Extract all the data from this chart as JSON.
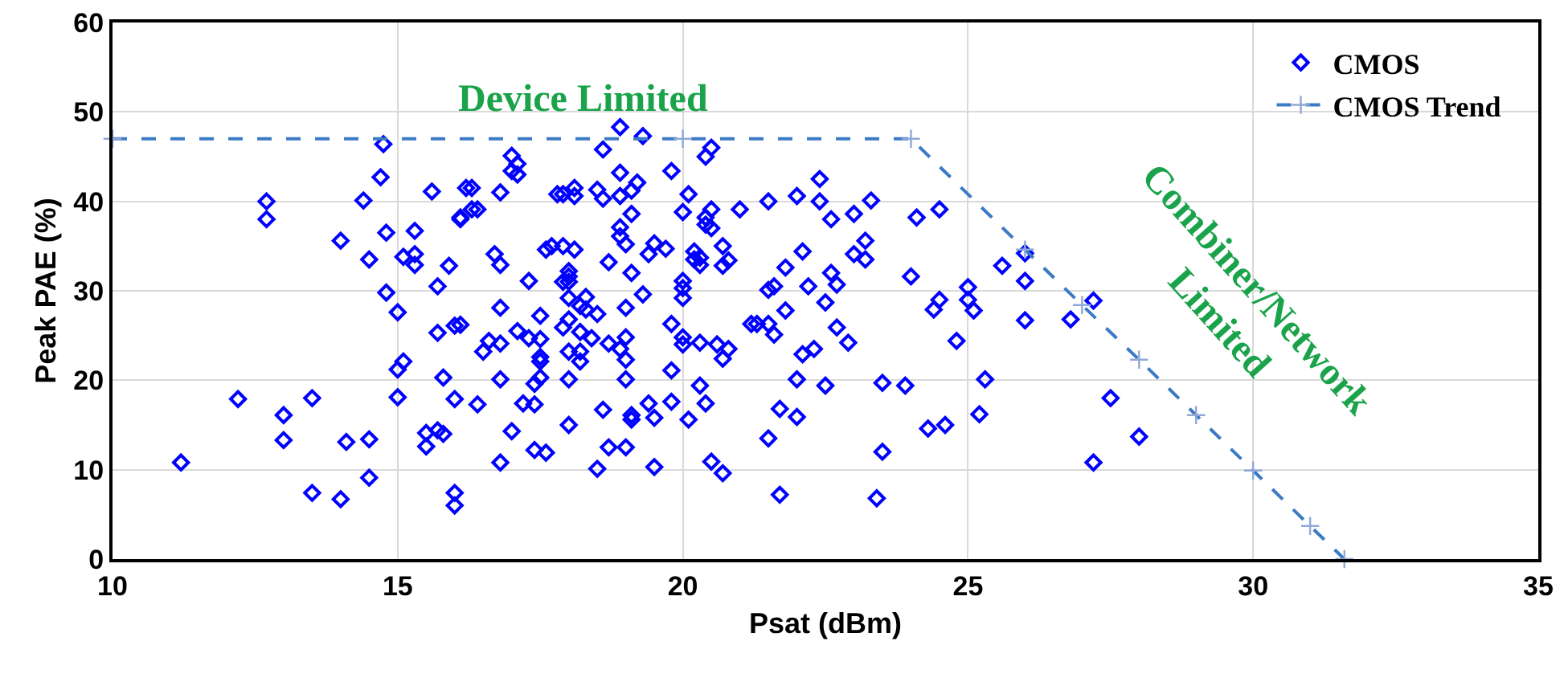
{
  "chart_data": {
    "type": "scatter",
    "xlabel": "Psat (dBm)",
    "ylabel": "Peak PAE (%)",
    "xlim": [
      10,
      35
    ],
    "ylim": [
      0,
      60
    ],
    "xticks": [
      10,
      15,
      20,
      25,
      30,
      35
    ],
    "yticks": [
      0,
      10,
      20,
      30,
      40,
      50,
      60
    ],
    "grid": true,
    "legend": "top right",
    "annotations": [
      "Device Limited",
      "Combiner/Network\nLimited"
    ],
    "series": [
      {
        "name": "CMOS",
        "color": "#0000ff",
        "marker": "diamond",
        "x": [
          11.2,
          12.2,
          12.7,
          12.7,
          13,
          13,
          13.5,
          13.5,
          14,
          14,
          14.1,
          14.5,
          14.5,
          14.4,
          14.5,
          14.7,
          14.75,
          14.8,
          15,
          15,
          15,
          15.1,
          14.8,
          15.1,
          15.3,
          15.3,
          15.3,
          15.6,
          15.7,
          15.7,
          16,
          15.8,
          15.5,
          15.5,
          15.7,
          15.8,
          16,
          16,
          16,
          15.9,
          16.1,
          16.3,
          16.4,
          18.9,
          19.3,
          18.6,
          20.4,
          20.5,
          17,
          17.1,
          17,
          17.1,
          18.9,
          19.8,
          19.2,
          19.1,
          16.2,
          16.8,
          17.8,
          17.9,
          18.1,
          18.1,
          18.5,
          18.6,
          18.9,
          20.1,
          20,
          20.5,
          20.4,
          20.4,
          20.5,
          21,
          19.1,
          16.3,
          16.1,
          18.9,
          18.9,
          19,
          19.5,
          19.4,
          19.7,
          18.7,
          20.2,
          20.3,
          20.2,
          20.3,
          20.7,
          20.8,
          20.7,
          16.7,
          16.8,
          17.6,
          17.7,
          17.9,
          18.1,
          18,
          18,
          17.9,
          18,
          19.1,
          17.3,
          20,
          20,
          20,
          19.3,
          16.1,
          16.8,
          18,
          18.3,
          18.2,
          18.3,
          18.5,
          17.5,
          19,
          19.8,
          21.2,
          17.1,
          17.3,
          17.5,
          17.9,
          18,
          18.2,
          18.4,
          16.6,
          16.5,
          16.8,
          17.5,
          17.5,
          18,
          18.2,
          18.2,
          18.7,
          18.9,
          19,
          19,
          20,
          20,
          20.3,
          20.6,
          20.8,
          20.7,
          16.8,
          17.4,
          17.5,
          18,
          19,
          19.8,
          20.3,
          20.4,
          16.4,
          17.2,
          17.4,
          18.6,
          19.1,
          19.1,
          19.4,
          19.5,
          19.8,
          20.1,
          17,
          18,
          17.4,
          17.6,
          18.7,
          19,
          16.8,
          18.5,
          19.5,
          20.5,
          20.7,
          21.5,
          22,
          22.4,
          22.4,
          22.6,
          23,
          23.3,
          22.1,
          21.8,
          23.2,
          23,
          23.2,
          22.6,
          22.7,
          21.5,
          21.6,
          22.2,
          22.5,
          21.8,
          21.3,
          21.5,
          21.6,
          22.7,
          22.9,
          22.3,
          22.1,
          22,
          22.5,
          21.7,
          22,
          21.5,
          21.7,
          23.4,
          23.5,
          23.9,
          23.5,
          24,
          24.1,
          24.5,
          24.4,
          24.5,
          24.8,
          25,
          25,
          25.1,
          25.3,
          24.3,
          24.6,
          25.2,
          25.6,
          26,
          26,
          26,
          26.8,
          27.2,
          27.5,
          28,
          27.2
        ],
        "values": [
          10.8,
          17.9,
          40,
          38,
          16.1,
          13.3,
          18,
          7.4,
          35.6,
          6.7,
          13.1,
          13.4,
          9.1,
          40.1,
          33.5,
          42.7,
          46.4,
          36.5,
          27.6,
          18.1,
          21.2,
          22.1,
          29.8,
          33.8,
          34.1,
          32.9,
          36.7,
          41.1,
          30.5,
          25.3,
          26.1,
          20.3,
          14.1,
          12.6,
          14.4,
          14,
          17.9,
          7.4,
          6,
          32.8,
          38,
          41.5,
          39.1,
          48.3,
          47.3,
          45.8,
          45,
          46,
          45.1,
          44.2,
          43.4,
          43,
          43.2,
          43.4,
          42.1,
          41.2,
          41.5,
          41,
          40.8,
          40.8,
          41.5,
          40.6,
          41.3,
          40.3,
          40.6,
          40.8,
          38.8,
          39.1,
          38.2,
          37.4,
          37,
          39.1,
          38.6,
          39.1,
          38.2,
          37.1,
          36.1,
          35.2,
          35.3,
          34.1,
          34.7,
          33.2,
          34.4,
          33.7,
          33.5,
          32.9,
          35,
          33.4,
          32.8,
          34.1,
          32.9,
          34.6,
          35,
          35,
          34.6,
          32.2,
          31.6,
          31,
          31,
          32,
          31.1,
          31.1,
          30.3,
          29.2,
          29.6,
          26.2,
          28.1,
          29.2,
          29.3,
          28.3,
          27.9,
          27.4,
          27.2,
          28.1,
          26.3,
          26.3,
          25.5,
          24.7,
          24.6,
          25.9,
          26.8,
          25.4,
          24.7,
          24.4,
          23.2,
          24.1,
          22.6,
          22.1,
          23.2,
          23.2,
          22.1,
          24.1,
          23.5,
          24.8,
          22.3,
          24.8,
          24,
          24.2,
          24,
          23.5,
          22.4,
          20.1,
          19.6,
          20.3,
          20.1,
          20.1,
          21.1,
          19.4,
          17.4,
          17.3,
          17.4,
          17.3,
          16.7,
          16.1,
          15.6,
          17.4,
          15.8,
          17.6,
          15.6,
          14.3,
          15,
          12.2,
          11.9,
          12.5,
          12.5,
          10.8,
          10.1,
          10.3,
          10.9,
          9.6,
          40,
          40.6,
          42.5,
          40,
          38,
          38.6,
          40.1,
          34.4,
          32.6,
          35.6,
          34.1,
          33.5,
          32,
          30.7,
          30.1,
          30.5,
          30.5,
          28.7,
          27.8,
          26.3,
          26.3,
          25.1,
          25.9,
          24.2,
          23.5,
          22.9,
          20.1,
          19.4,
          16.8,
          15.9,
          13.5,
          7.2,
          6.8,
          19.7,
          19.4,
          12,
          31.6,
          38.2,
          39.1,
          27.9,
          29,
          24.4,
          30.4,
          29,
          27.8,
          20.1,
          14.6,
          15,
          16.2,
          32.8,
          34.2,
          31.1,
          26.7,
          26.8,
          28.9,
          18,
          13.7,
          10.8
        ]
      },
      {
        "name": "CMOS Trend",
        "type": "line",
        "color": "#3b7ac4",
        "marker": "cross",
        "line_style": "dashed",
        "x": [
          10,
          20,
          24,
          26,
          27,
          28,
          29,
          30,
          31,
          31.6
        ],
        "values": [
          47,
          47,
          47,
          34.6,
          28.4,
          22.3,
          16.1,
          9.9,
          3.7,
          0
        ]
      }
    ]
  }
}
